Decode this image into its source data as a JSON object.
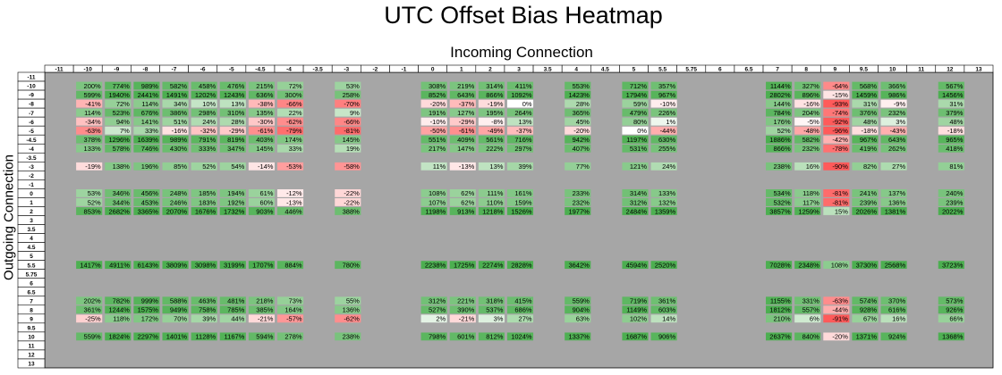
{
  "chart_data": {
    "type": "heatmap",
    "title": "UTC Offset Bias Heatmap",
    "xlabel": "Incoming Connection",
    "ylabel": "Outgoing Connection",
    "value_suffix": "%",
    "colors": {
      "positive": "#4caf50",
      "negative": "#ff5a5a",
      "neutral": "#ffffff",
      "empty": "#a6a6a6"
    },
    "x_categories": [
      "-11",
      "-10",
      "-9",
      "-8",
      "-7",
      "-6",
      "-5",
      "-4.5",
      "-4",
      "-3.5",
      "-3",
      "-2",
      "-1",
      "0",
      "1",
      "2",
      "3",
      "3.5",
      "4",
      "4.5",
      "5",
      "5.5",
      "5.75",
      "6",
      "6.5",
      "7",
      "8",
      "9",
      "9.5",
      "10",
      "11",
      "12",
      "13"
    ],
    "y_categories": [
      "-11",
      "-10",
      "-9",
      "-8",
      "-7",
      "-6",
      "-5",
      "-4.5",
      "-4",
      "-3.5",
      "-3",
      "-2",
      "-1",
      "0",
      "1",
      "2",
      "3",
      "3.5",
      "4",
      "4.5",
      "5",
      "5.5",
      "5.75",
      "6",
      "6.5",
      "7",
      "8",
      "9",
      "9.5",
      "10",
      "11",
      "12",
      "13"
    ],
    "rows": {
      "-10": [
        null,
        200,
        774,
        989,
        582,
        458,
        476,
        215,
        72,
        null,
        53,
        null,
        null,
        308,
        219,
        314,
        411,
        null,
        553,
        null,
        712,
        357,
        null,
        null,
        null,
        1144,
        327,
        -64,
        568,
        366,
        null,
        567,
        null
      ],
      "-9": [
        null,
        599,
        1940,
        2441,
        1491,
        1202,
        1243,
        636,
        300,
        null,
        258,
        null,
        null,
        852,
        643,
        866,
        1092,
        null,
        1423,
        null,
        1794,
        967,
        null,
        null,
        null,
        2802,
        896,
        -15,
        1459,
        986,
        null,
        1456,
        null
      ],
      "-8": [
        null,
        -41,
        72,
        114,
        34,
        10,
        13,
        -38,
        -66,
        null,
        -70,
        null,
        null,
        -20,
        -37,
        -19,
        0,
        null,
        28,
        null,
        59,
        -10,
        null,
        null,
        null,
        144,
        -16,
        -93,
        31,
        -9,
        null,
        31,
        null
      ],
      "-7": [
        null,
        114,
        523,
        676,
        386,
        298,
        310,
        135,
        22,
        null,
        9,
        null,
        null,
        191,
        127,
        195,
        264,
        null,
        365,
        null,
        479,
        226,
        null,
        null,
        null,
        784,
        204,
        -74,
        376,
        232,
        null,
        379,
        null
      ],
      "-6": [
        null,
        -34,
        94,
        141,
        51,
        24,
        28,
        -30,
        -62,
        null,
        -66,
        null,
        null,
        -10,
        -29,
        -8,
        13,
        null,
        45,
        null,
        80,
        1,
        null,
        null,
        null,
        176,
        -5,
        -92,
        48,
        3,
        null,
        48,
        null
      ],
      "-5": [
        null,
        -63,
        7,
        33,
        -16,
        -32,
        -29,
        -61,
        -79,
        null,
        -81,
        null,
        null,
        -50,
        -61,
        -49,
        -37,
        null,
        -20,
        null,
        0,
        -44,
        null,
        null,
        null,
        52,
        -48,
        -96,
        -18,
        -43,
        null,
        -18,
        null
      ],
      "-4.5": [
        null,
        378,
        1296,
        1639,
        989,
        791,
        819,
        403,
        174,
        null,
        145,
        null,
        null,
        551,
        409,
        561,
        716,
        null,
        942,
        null,
        1197,
        630,
        null,
        null,
        null,
        1886,
        582,
        -42,
        967,
        643,
        null,
        965,
        null
      ],
      "-4": [
        null,
        133,
        578,
        746,
        430,
        333,
        347,
        145,
        33,
        null,
        19,
        null,
        null,
        217,
        147,
        222,
        297,
        null,
        407,
        null,
        531,
        255,
        null,
        null,
        null,
        866,
        232,
        -78,
        419,
        262,
        null,
        418,
        null
      ],
      "-3": [
        null,
        -19,
        138,
        196,
        85,
        52,
        54,
        -14,
        -53,
        null,
        -58,
        null,
        null,
        11,
        -13,
        13,
        39,
        null,
        77,
        null,
        121,
        24,
        null,
        null,
        null,
        238,
        16,
        -90,
        82,
        27,
        null,
        81,
        null
      ],
      "0": [
        null,
        53,
        346,
        456,
        248,
        185,
        194,
        61,
        -12,
        null,
        -22,
        null,
        null,
        108,
        62,
        111,
        161,
        null,
        233,
        null,
        314,
        133,
        null,
        null,
        null,
        534,
        118,
        -81,
        241,
        137,
        null,
        240,
        null
      ],
      "1": [
        null,
        52,
        344,
        453,
        246,
        183,
        192,
        60,
        -13,
        null,
        -22,
        null,
        null,
        107,
        62,
        110,
        159,
        null,
        232,
        null,
        312,
        132,
        null,
        null,
        null,
        532,
        117,
        -81,
        239,
        136,
        null,
        239,
        null
      ],
      "2": [
        null,
        853,
        2682,
        3365,
        2070,
        1676,
        1732,
        903,
        446,
        null,
        388,
        null,
        null,
        1198,
        913,
        1218,
        1526,
        null,
        1977,
        null,
        2484,
        1359,
        null,
        null,
        null,
        3857,
        1259,
        15,
        2026,
        1381,
        null,
        2022,
        null
      ],
      "5.5": [
        null,
        1417,
        4911,
        6143,
        3809,
        3098,
        3199,
        1707,
        884,
        null,
        780,
        null,
        null,
        2238,
        1725,
        2274,
        2828,
        null,
        3642,
        null,
        4594,
        2520,
        null,
        null,
        null,
        7028,
        2348,
        108,
        3730,
        2568,
        null,
        3723,
        null
      ],
      "7": [
        null,
        202,
        782,
        999,
        588,
        463,
        481,
        218,
        73,
        null,
        55,
        null,
        null,
        312,
        221,
        318,
        415,
        null,
        559,
        null,
        719,
        361,
        null,
        null,
        null,
        1155,
        331,
        -63,
        574,
        370,
        null,
        573,
        null
      ],
      "8": [
        null,
        361,
        1244,
        1575,
        949,
        758,
        785,
        385,
        164,
        null,
        136,
        null,
        null,
        527,
        390,
        537,
        686,
        null,
        904,
        null,
        1149,
        603,
        null,
        null,
        null,
        1812,
        557,
        -44,
        928,
        616,
        null,
        926,
        null
      ],
      "9": [
        null,
        -25,
        118,
        172,
        70,
        39,
        44,
        -21,
        -57,
        null,
        -62,
        null,
        null,
        2,
        -21,
        3,
        27,
        null,
        63,
        null,
        102,
        14,
        null,
        null,
        null,
        210,
        6,
        -91,
        67,
        16,
        null,
        66,
        null
      ],
      "10": [
        null,
        559,
        1824,
        2297,
        1401,
        1128,
        1167,
        594,
        278,
        null,
        238,
        null,
        null,
        798,
        601,
        812,
        1024,
        null,
        1337,
        null,
        1687,
        906,
        null,
        null,
        null,
        2637,
        840,
        -20,
        1371,
        924,
        null,
        1368,
        null
      ]
    }
  }
}
